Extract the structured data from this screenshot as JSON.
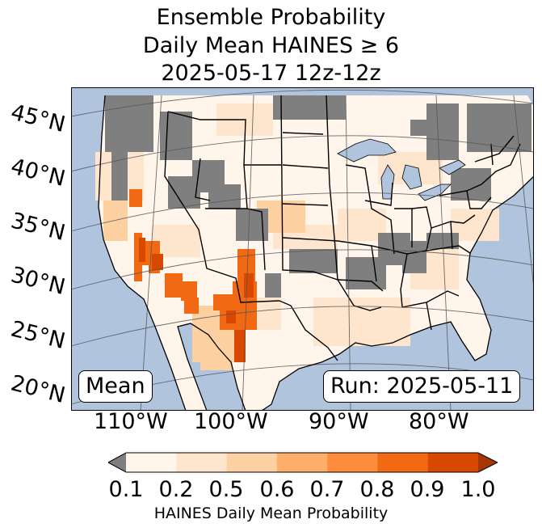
{
  "title": {
    "line1": "Ensemble Probability",
    "line2": "Daily Mean HAINES ≥ 6",
    "line3": "2025-05-17 12z-12z"
  },
  "map": {
    "lat_labels": [
      "45°N",
      "40°N",
      "35°N",
      "30°N",
      "25°N",
      "20°N"
    ],
    "lon_labels": [
      "110°W",
      "100°W",
      "90°W",
      "80°W"
    ],
    "stat_box": "Mean",
    "run_box": "Run: 2025-05-11",
    "colors": {
      "ocean": "#b0c4de",
      "no_data": "#7f7f7f",
      "land_base": "#fff5eb",
      "lakes": "#b0c4de"
    }
  },
  "colorbar": {
    "label": "HAINES Daily Mean Probability",
    "ticks": [
      "0.1",
      "0.2",
      "0.5",
      "0.6",
      "0.7",
      "0.8",
      "0.9",
      "1.0"
    ],
    "under_color": "#7f7f7f",
    "colors": [
      "#fff5eb",
      "#fee6ce",
      "#fdd0a2",
      "#fdae6b",
      "#fd8d3c",
      "#f16913",
      "#d94801",
      "#a63603"
    ]
  }
}
